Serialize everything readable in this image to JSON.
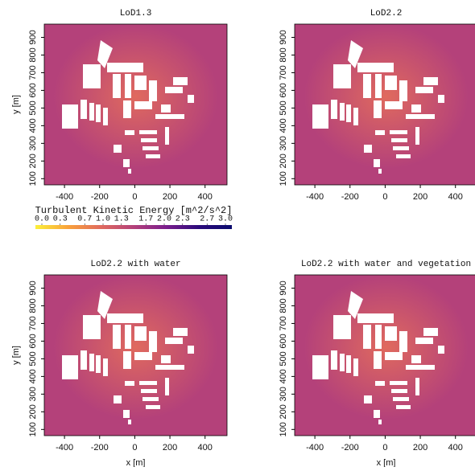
{
  "chart_data": [
    {
      "type": "heatmap",
      "title": "LoD1.3",
      "xlim": [
        -515,
        525
      ],
      "ylim": [
        65,
        975
      ],
      "xticks": [
        -400,
        -200,
        0,
        200,
        400
      ],
      "yticks": [
        100,
        200,
        300,
        400,
        500,
        600,
        700,
        800,
        900
      ],
      "ylabel": "y [m]"
    },
    {
      "type": "heatmap",
      "title": "LoD2.2",
      "xlim": [
        -515,
        525
      ],
      "ylim": [
        65,
        975
      ],
      "xticks": [
        -400,
        -200,
        0,
        200,
        400
      ],
      "yticks": [
        100,
        200,
        300,
        400,
        500,
        600,
        700,
        800,
        900
      ]
    },
    {
      "type": "heatmap",
      "title": "LoD2.2 with water",
      "xlim": [
        -515,
        525
      ],
      "ylim": [
        65,
        975
      ],
      "xticks": [
        -400,
        -200,
        0,
        200,
        400
      ],
      "yticks": [
        100,
        200,
        300,
        400,
        500,
        600,
        700,
        800,
        900
      ],
      "xlabel": "x [m]",
      "ylabel": "y [m]"
    },
    {
      "type": "heatmap",
      "title": "LoD2.2 with water and vegetation",
      "xlim": [
        -515,
        525
      ],
      "ylim": [
        65,
        975
      ],
      "xticks": [
        -400,
        -200,
        0,
        200,
        400
      ],
      "yticks": [
        100,
        200,
        300,
        400,
        500,
        600,
        700,
        800,
        900
      ],
      "xlabel": "x [m]"
    }
  ],
  "colorbar": {
    "label": "Turbulent Kinetic Energy [m^2/s^2]",
    "lim": [
      0,
      3
    ],
    "ticks": [
      {
        "value": 0,
        "label": "0.0"
      },
      0.3,
      0.7,
      {
        "value": 1,
        "label": "1.0"
      },
      1.3,
      1.7,
      {
        "value": 2,
        "label": "2.0"
      },
      2.3,
      2.7,
      {
        "value": 3,
        "label": "3.0"
      }
    ],
    "colors": [
      "#fcf03a",
      "#f9a23a",
      "#e06a5e",
      "#b4417a",
      "#7a1d8c",
      "#2a0a7a",
      "#0b0b6e"
    ]
  }
}
